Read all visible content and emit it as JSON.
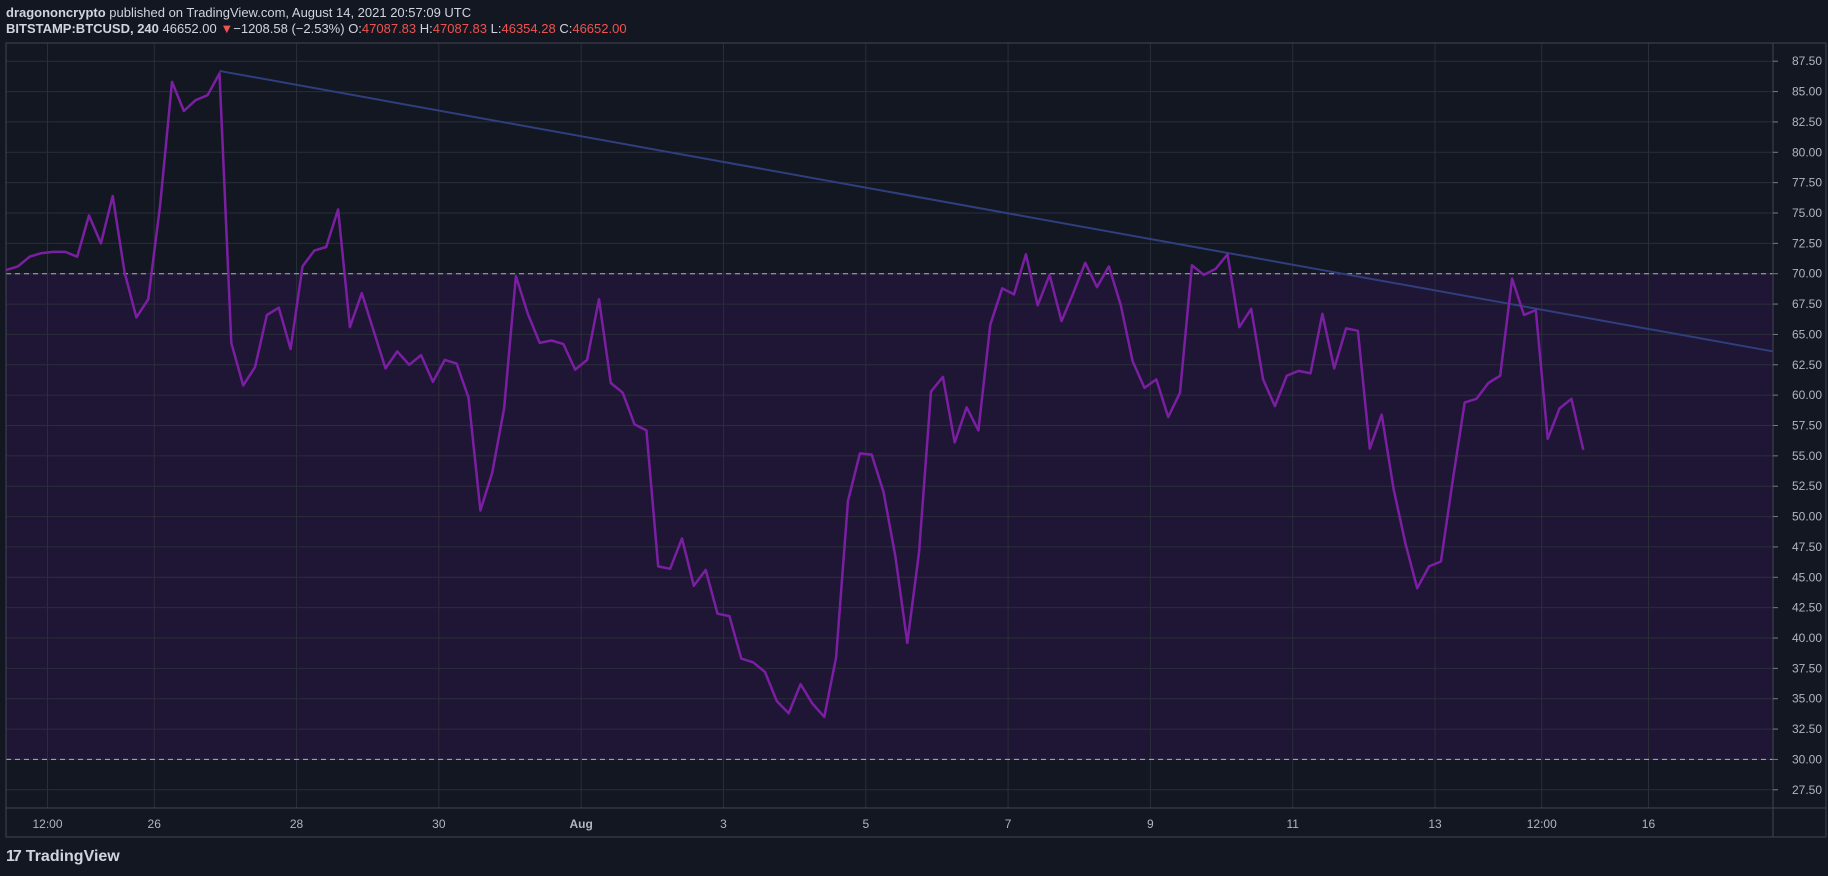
{
  "header": {
    "author": "dragononcrypto",
    "published_text": "published on TradingView.com, August 14, 2021 20:57:09 UTC",
    "symbol": "BITSTAMP:BTCUSD, 240",
    "price": "46652.00",
    "change_arrow": "▼",
    "change": "−1208.58 (−2.53%)",
    "o_label": "O:",
    "o_value": "47087.83",
    "h_label": "H:",
    "h_value": "47087.83",
    "l_label": "L:",
    "l_value": "46354.28",
    "c_label": "C:",
    "c_value": "46652.00"
  },
  "brand": {
    "mark": "17",
    "name": "TradingView"
  },
  "colors": {
    "background": "#131722",
    "grid": "#2a2e39",
    "band_fill": "#1f1535",
    "rsi_line": "#7b1fa2",
    "trend_line": "#2f3f7d",
    "level_line": "#c8cad1",
    "down": "#ef5350"
  },
  "chart_data": {
    "type": "line",
    "ylim": [
      26,
      89
    ],
    "x_range": [
      0,
      149
    ],
    "yticks": [
      27.5,
      30,
      32.5,
      35,
      37.5,
      40,
      42.5,
      45,
      47.5,
      50,
      52.5,
      55,
      57.5,
      60,
      62.5,
      65,
      67.5,
      70,
      72.5,
      75,
      77.5,
      80,
      82.5,
      85,
      87.5
    ],
    "ytick_labels": [
      "27.50",
      "30.00",
      "32.50",
      "35.00",
      "37.50",
      "40.00",
      "42.50",
      "45.00",
      "47.50",
      "50.00",
      "52.50",
      "55.00",
      "57.50",
      "60.00",
      "62.50",
      "65.00",
      "67.50",
      "70.00",
      "72.50",
      "75.00",
      "77.50",
      "80.00",
      "82.50",
      "85.00",
      "87.50"
    ],
    "xticks": [
      {
        "x": 3.5,
        "label": "12:00"
      },
      {
        "x": 12.5,
        "label": "26"
      },
      {
        "x": 24.5,
        "label": "28"
      },
      {
        "x": 36.5,
        "label": "30"
      },
      {
        "x": 48.5,
        "label": "Aug"
      },
      {
        "x": 60.5,
        "label": "3"
      },
      {
        "x": 72.5,
        "label": "5"
      },
      {
        "x": 84.5,
        "label": "7"
      },
      {
        "x": 96.5,
        "label": "9"
      },
      {
        "x": 108.5,
        "label": "11"
      },
      {
        "x": 120.5,
        "label": "13"
      },
      {
        "x": 129.5,
        "label": "12:00"
      },
      {
        "x": 138.5,
        "label": "16"
      }
    ],
    "band": {
      "upper": 70,
      "lower": 30
    },
    "series": [
      {
        "values": [
          70.3,
          70.6,
          71.4,
          71.7,
          71.8,
          71.8,
          71.4,
          74.8,
          72.5,
          76.4,
          70.1,
          66.4,
          67.9,
          75.7,
          85.8,
          83.4,
          84.3,
          84.7,
          86.5,
          64.3,
          60.8,
          62.3,
          66.6,
          67.2,
          63.8,
          70.6,
          71.9,
          72.2,
          75.3,
          65.6,
          68.4,
          65.3,
          62.2,
          63.6,
          62.5,
          63.3,
          61.1,
          62.9,
          62.6,
          59.8,
          50.5,
          53.6,
          58.9,
          69.8,
          66.7,
          64.3,
          64.5,
          64.2,
          62.1,
          62.9,
          67.9,
          61.0,
          60.2,
          57.6,
          57.1,
          45.9,
          45.7,
          48.2,
          44.3,
          45.6,
          42.0,
          41.8,
          38.3,
          38.0,
          37.2,
          34.8,
          33.8,
          36.2,
          34.6,
          33.5,
          38.4,
          51.3,
          55.2,
          55.1,
          52.0,
          46.7,
          39.6,
          47.1,
          60.3,
          61.5,
          56.1,
          59.0,
          57.1,
          65.8,
          68.8,
          68.3,
          71.6,
          67.4,
          69.9,
          66.1,
          68.4,
          70.9,
          68.9,
          70.6,
          67.4,
          62.8,
          60.6,
          61.3,
          58.2,
          60.2,
          70.7,
          69.9,
          70.4,
          71.6,
          65.6,
          67.1,
          61.3,
          59.1,
          61.6,
          62.0,
          61.8,
          66.7,
          62.2,
          65.5,
          65.3,
          55.6,
          58.4,
          52.3,
          47.8,
          44.1,
          45.9,
          46.3,
          53.0,
          59.4,
          59.7,
          61.0,
          61.6,
          69.6,
          66.6,
          67.0,
          56.4,
          58.9,
          59.7,
          55.5
        ]
      }
    ],
    "trendline": {
      "x1": 18,
      "y1": 86.7,
      "x2": 149,
      "y2": 63.6
    }
  }
}
